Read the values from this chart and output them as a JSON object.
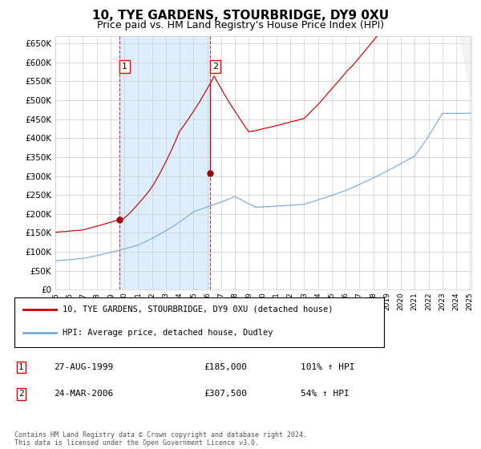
{
  "title": "10, TYE GARDENS, STOURBRIDGE, DY9 0XU",
  "subtitle": "Price paid vs. HM Land Registry's House Price Index (HPI)",
  "ylim": [
    0,
    670000
  ],
  "yticks": [
    0,
    50000,
    100000,
    150000,
    200000,
    250000,
    300000,
    350000,
    400000,
    450000,
    500000,
    550000,
    600000,
    650000
  ],
  "sale1_price": 185000,
  "sale2_price": 307500,
  "sale1_x": 1999.65,
  "sale2_x": 2006.22,
  "line1_label": "10, TYE GARDENS, STOURBRIDGE, DY9 0XU (detached house)",
  "line2_label": "HPI: Average price, detached house, Dudley",
  "line1_color": "#cc0000",
  "line2_color": "#7aaadd",
  "dot_color": "#990000",
  "vline_color": "#cc0000",
  "shade_color": "#ddeeff",
  "grid_color": "#cccccc",
  "background_color": "#ffffff",
  "sale1_date_label": "27-AUG-1999",
  "sale2_date_label": "24-MAR-2006",
  "sale1_hpi_pct": "101% ↑ HPI",
  "sale2_hpi_pct": "54% ↑ HPI",
  "footnote": "Contains HM Land Registry data © Crown copyright and database right 2024.\nThis data is licensed under the Open Government Licence v3.0."
}
